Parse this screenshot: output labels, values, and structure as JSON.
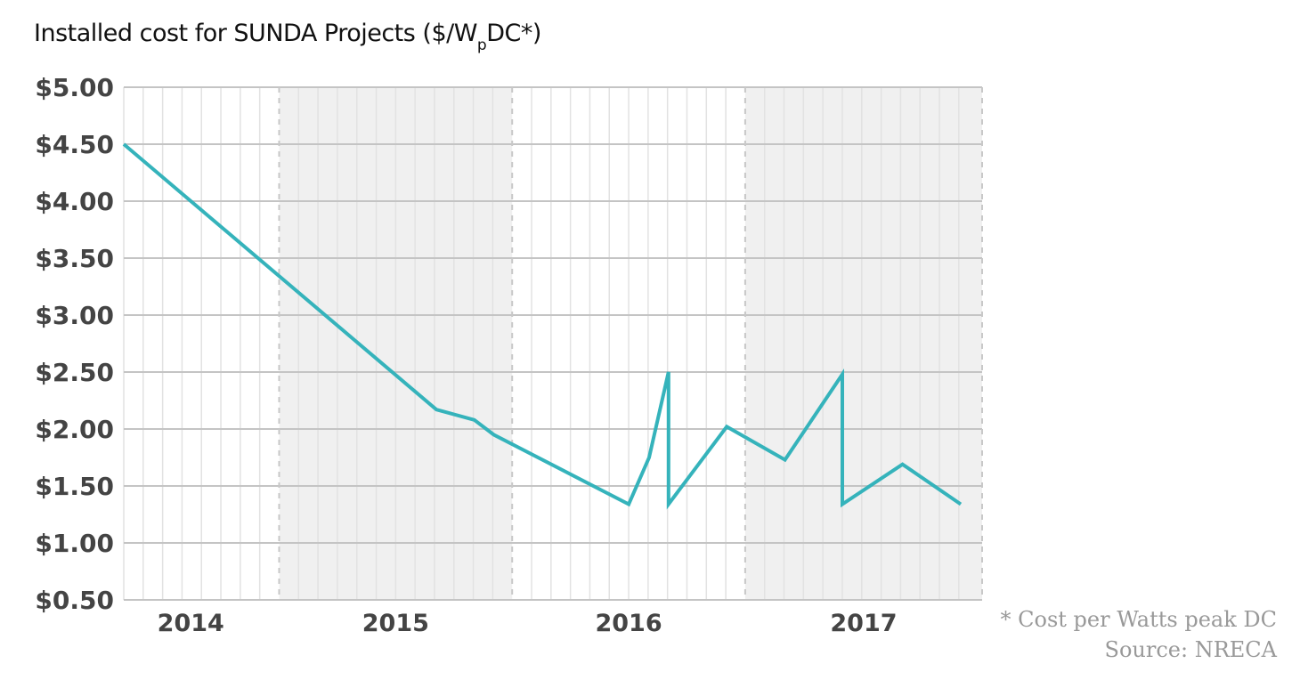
{
  "chart_data": {
    "type": "line",
    "title_main": "Installed cost for SUNDA Projects ($/W",
    "title_sub": "p",
    "title_end": "DC*)",
    "ylabel": "",
    "xlabel": "",
    "ylim": [
      0.5,
      5.0
    ],
    "yticks": [
      5.0,
      4.5,
      4.0,
      3.5,
      3.0,
      2.5,
      2.0,
      1.5,
      1.0,
      0.5
    ],
    "ytick_labels": [
      "$5.00",
      "$4.50",
      "$4.00",
      "$3.50",
      "$3.00",
      "$2.50",
      "$2.00",
      "$1.50",
      "$1.00",
      "$0.50"
    ],
    "xlim_months": [
      4,
      48.2
    ],
    "x_unit": "months since Jan 2014",
    "years": [
      {
        "label": "2014",
        "start": 4,
        "end": 12,
        "shaded": false
      },
      {
        "label": "2015",
        "start": 12,
        "end": 24,
        "shaded": true
      },
      {
        "label": "2016",
        "start": 24,
        "end": 36,
        "shaded": false
      },
      {
        "label": "2017",
        "start": 36,
        "end": 48.2,
        "shaded": true
      }
    ],
    "grid": true,
    "series": [
      {
        "name": "Installed cost",
        "color": "#35b3bb",
        "x": [
          4,
          20.1,
          22.05,
          23.05,
          30,
          31.05,
          32.05,
          32.05,
          35.05,
          38.05,
          41,
          41,
          44.1,
          47.1
        ],
        "values": [
          4.5,
          2.17,
          2.08,
          1.95,
          1.34,
          1.75,
          2.5,
          1.34,
          2.02,
          1.73,
          2.48,
          1.34,
          1.69,
          1.34
        ]
      }
    ]
  },
  "notes": {
    "footnote": "* Cost per Watts peak DC",
    "source": "Source: NRECA"
  },
  "colors": {
    "line": "#35b3bb",
    "shade": "#f0f0f0",
    "grid_major": "#c4c4c4",
    "grid_minor": "#e2e2e2",
    "year_divider": "#c8c8c8"
  }
}
